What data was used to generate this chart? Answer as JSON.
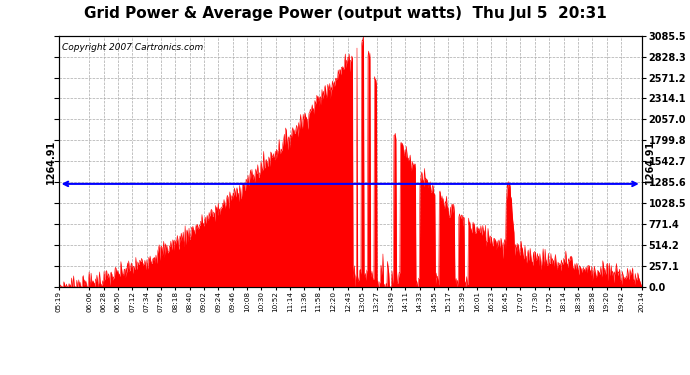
{
  "title": "Grid Power & Average Power (output watts)  Thu Jul 5  20:31",
  "copyright": "Copyright 2007 Cartronics.com",
  "average_value": 1264.91,
  "ymax": 3085.5,
  "yticks": [
    0.0,
    257.1,
    514.2,
    771.4,
    1028.5,
    1285.6,
    1542.7,
    1799.8,
    2057.0,
    2314.1,
    2571.2,
    2828.3,
    3085.5
  ],
  "ytick_labels": [
    "0.0",
    "257.1",
    "514.2",
    "771.4",
    "1028.5",
    "1285.6",
    "1542.7",
    "1799.8",
    "2057.0",
    "2314.1",
    "2571.2",
    "2828.3",
    "3085.5"
  ],
  "fill_color": "#FF0000",
  "avg_line_color": "#0000FF",
  "background_color": "#FFFFFF",
  "grid_color": "#AAAAAA",
  "title_fontsize": 11,
  "copyright_fontsize": 6.5,
  "xtick_labels": [
    "05:19",
    "06:06",
    "06:28",
    "06:50",
    "07:12",
    "07:34",
    "07:56",
    "08:18",
    "08:40",
    "09:02",
    "09:24",
    "09:46",
    "10:08",
    "10:30",
    "10:52",
    "11:14",
    "11:36",
    "11:58",
    "12:20",
    "12:43",
    "13:05",
    "13:27",
    "13:49",
    "14:11",
    "14:33",
    "14:55",
    "15:17",
    "15:39",
    "16:01",
    "16:23",
    "16:45",
    "17:07",
    "17:30",
    "17:52",
    "18:14",
    "18:36",
    "18:58",
    "19:20",
    "19:42",
    "20:14"
  ]
}
